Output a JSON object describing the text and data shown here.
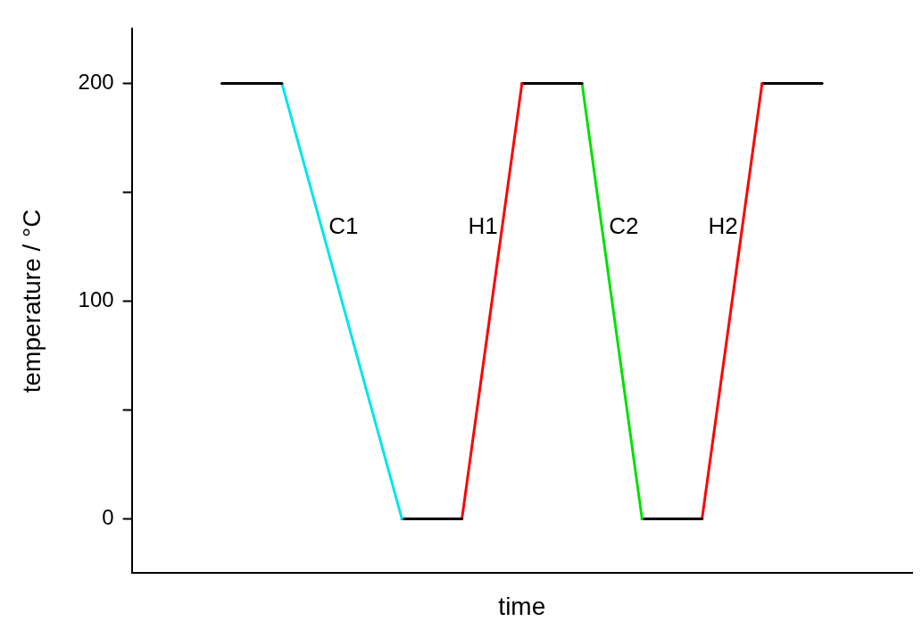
{
  "chart_data": {
    "type": "line",
    "xlabel": "time",
    "ylabel": "temperature / °C",
    "categories": [
      null,
      null,
      null,
      null,
      null,
      null,
      null,
      null,
      null,
      null,
      null,
      null,
      null
    ],
    "series": [
      {
        "color": "#000000",
        "values": [
          null,
          200,
          200,
          null,
          null,
          null,
          null,
          null,
          null,
          null,
          null,
          null,
          null
        ]
      },
      {
        "name": "C1",
        "color": "#00e5ee",
        "values": [
          null,
          null,
          200,
          100,
          0,
          null,
          null,
          null,
          null,
          null,
          null,
          null,
          null
        ]
      },
      {
        "color": "#000000",
        "values": [
          null,
          null,
          null,
          null,
          0,
          0,
          null,
          null,
          null,
          null,
          null,
          null,
          null
        ]
      },
      {
        "name": "H1",
        "color": "#ff0000",
        "values": [
          null,
          null,
          null,
          null,
          null,
          0,
          200,
          null,
          null,
          null,
          null,
          null,
          null
        ]
      },
      {
        "color": "#000000",
        "values": [
          null,
          null,
          null,
          null,
          null,
          null,
          200,
          200,
          null,
          null,
          null,
          null,
          null
        ]
      },
      {
        "name": "C2",
        "color": "#00e000",
        "values": [
          null,
          null,
          null,
          null,
          null,
          null,
          null,
          200,
          0,
          null,
          null,
          null,
          null
        ]
      },
      {
        "color": "#000000",
        "values": [
          null,
          null,
          null,
          null,
          null,
          null,
          null,
          null,
          0,
          0,
          null,
          null,
          null
        ]
      },
      {
        "name": "H2",
        "color": "#ff0000",
        "values": [
          null,
          null,
          null,
          null,
          null,
          null,
          null,
          null,
          null,
          0,
          200,
          null,
          null
        ]
      },
      {
        "color": "#000000",
        "values": [
          null,
          null,
          null,
          null,
          null,
          null,
          null,
          null,
          null,
          null,
          200,
          200,
          null
        ]
      }
    ],
    "ylim": [
      -25,
      225
    ],
    "yticks": [
      0,
      {
        "value": 50,
        "label": null
      },
      100,
      {
        "value": 150,
        "label": null
      },
      200
    ],
    "grid": false,
    "legend": false,
    "marker": "none",
    "line_style": "solid"
  }
}
